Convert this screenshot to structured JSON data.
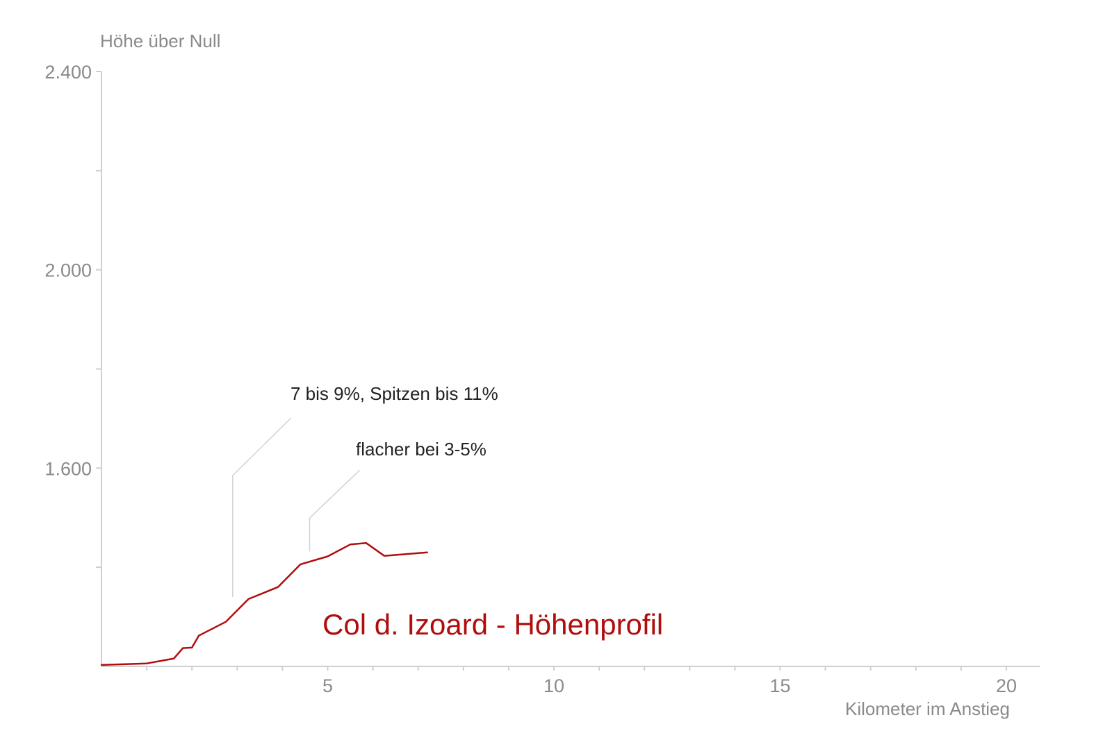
{
  "chart_data": {
    "type": "line",
    "title": "Col d. Izoard - Höhenprofil",
    "ylabel": "Höhe über Null",
    "xlabel": "Kilometer im Anstieg",
    "xlim": [
      0,
      21
    ],
    "ylim": [
      1200,
      2400
    ],
    "x_ticks": [
      5,
      10,
      15,
      20
    ],
    "x_tick_labels": [
      "5",
      "10",
      "15",
      "20"
    ],
    "y_ticks": [
      1600,
      2000,
      2400
    ],
    "y_tick_labels": [
      "1.600",
      "2.000",
      "2.400"
    ],
    "grid": false,
    "color": "#b00d0d",
    "series": [
      {
        "x": [
          0.0,
          1.0,
          1.6,
          1.8,
          2.0,
          2.15,
          2.75,
          3.25,
          3.9,
          4.4,
          5.0,
          5.5,
          5.85,
          6.25,
          7.2
        ],
        "y": [
          1203,
          1206,
          1216,
          1237,
          1238,
          1262,
          1290,
          1336,
          1360,
          1406,
          1422,
          1446,
          1449,
          1423,
          1430
        ]
      }
    ],
    "annotations": [
      {
        "text": "7 bis 9%, Spitzen bis 11%",
        "x": 2.9,
        "y": 1340
      },
      {
        "text": "flacher bei 3-5%",
        "x": 4.6,
        "y": 1432
      }
    ]
  }
}
